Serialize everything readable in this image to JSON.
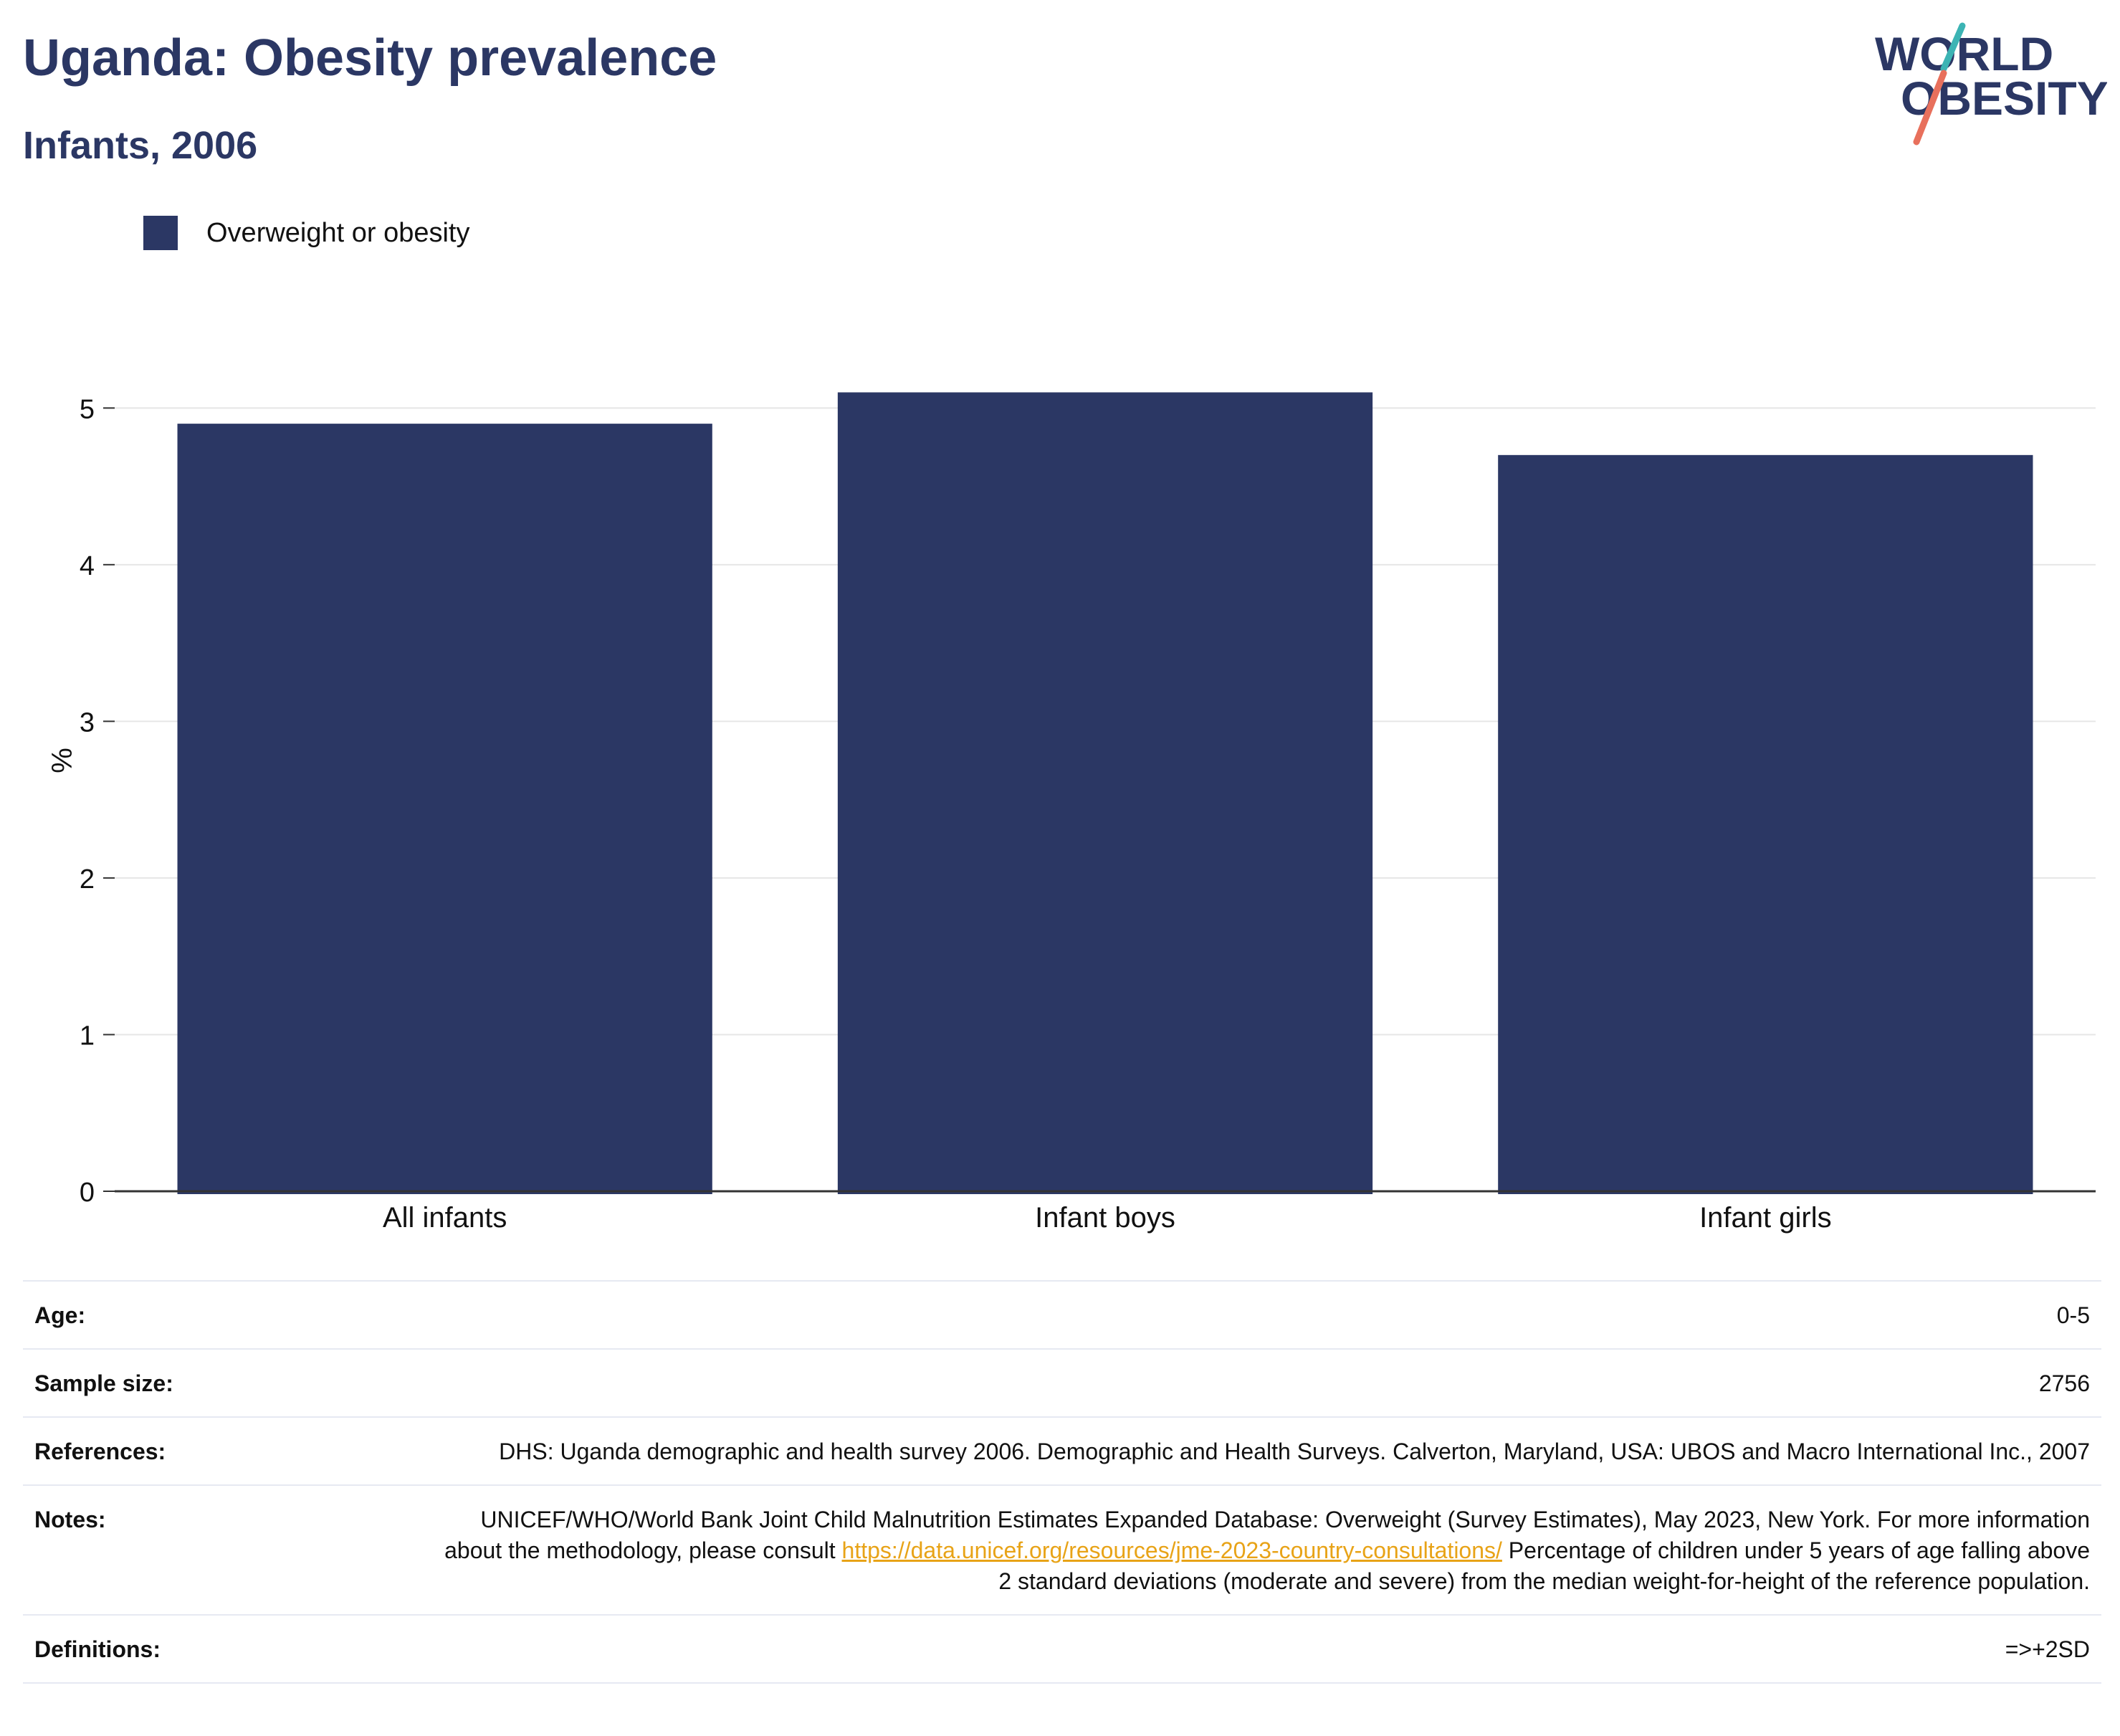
{
  "header": {
    "title": "Uganda: Obesity prevalence",
    "subtitle": "Infants, 2006"
  },
  "logo": {
    "line1": "WORLD",
    "line2": "OBESITY"
  },
  "colors": {
    "bar": "#2b3764",
    "title": "#2b3764",
    "logo_teal": "#3cb4b4",
    "logo_coral": "#e8705c",
    "grid": "#e6e6e6"
  },
  "chart_data": {
    "type": "bar",
    "title": "Uganda: Obesity prevalence",
    "subtitle": "Infants, 2006",
    "categories": [
      "All infants",
      "Infant boys",
      "Infant girls"
    ],
    "series": [
      {
        "name": "Overweight or obesity",
        "values": [
          4.9,
          5.1,
          4.7
        ]
      }
    ],
    "ylabel": "%",
    "xlabel": "",
    "ylim": [
      0,
      5.5
    ],
    "yticks": [
      0,
      1,
      2,
      3,
      4,
      5
    ],
    "grid": true,
    "legend": "top-left"
  },
  "meta": {
    "age_label": "Age:",
    "age_value": "0-5",
    "sample_label": "Sample size:",
    "sample_value": "2756",
    "references_label": "References:",
    "references_value": "DHS: Uganda demographic and health survey 2006. Demographic and Health Surveys. Calverton, Maryland, USA: UBOS and Macro International Inc., 2007",
    "notes_label": "Notes:",
    "notes_text_1": "UNICEF/WHO/World Bank Joint Child Malnutrition Estimates Expanded Database: Overweight (Survey Estimates), May 2023, New York. For more information about the methodology, please consult ",
    "notes_link": "https://data.unicef.org/resources/jme-2023-country-consultations/",
    "notes_text_2": " Percentage of children under 5 years of age falling above 2 standard deviations (moderate and severe) from the median weight-for-height of the reference population.",
    "definitions_label": "Definitions:",
    "definitions_value": "=>+2SD"
  }
}
